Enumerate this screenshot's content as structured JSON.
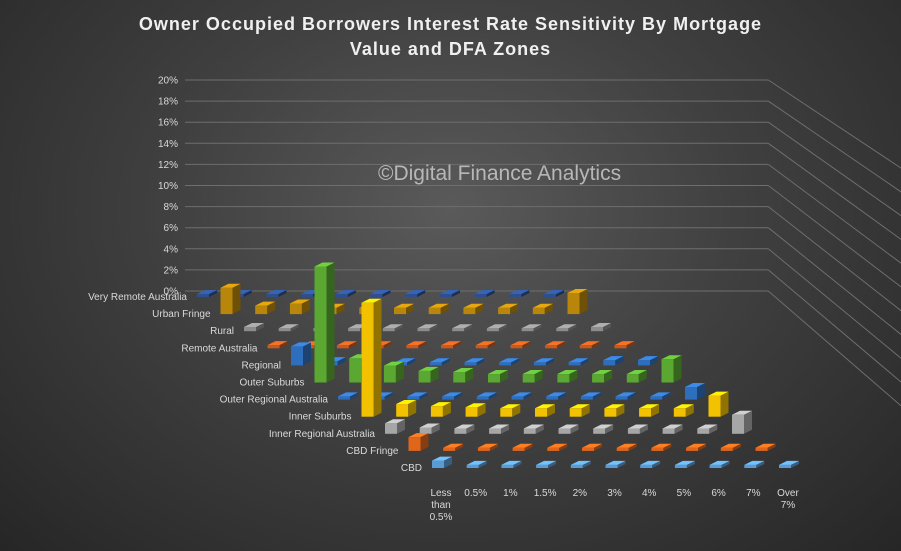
{
  "chart_data": {
    "type": "bar",
    "title_line1": "Owner Occupied Borrowers Interest Rate Sensitivity By Mortgage",
    "title_line2": "Value and DFA Zones",
    "watermark": "©Digital Finance Analytics",
    "y_axis": {
      "ticks": [
        "20%",
        "18%",
        "16%",
        "14%",
        "12%",
        "10%",
        "8%",
        "6%",
        "4%",
        "2%",
        "0%"
      ],
      "ylim": [
        0,
        20
      ],
      "unit": "%"
    },
    "categories": [
      "Less than 0.5%",
      "0.5%",
      "1%",
      "1.5%",
      "2%",
      "3%",
      "4%",
      "5%",
      "6%",
      "7%",
      "Over 7%"
    ],
    "category_display": [
      [
        "Less",
        "than",
        "0.5%"
      ],
      [
        "0.5%"
      ],
      [
        "1%"
      ],
      [
        "1.5%"
      ],
      [
        "2%"
      ],
      [
        "3%"
      ],
      [
        "4%"
      ],
      [
        "5%"
      ],
      [
        "6%"
      ],
      [
        "7%"
      ],
      [
        "Over",
        "7%"
      ]
    ],
    "series": [
      {
        "name": "Very Remote Australia",
        "color": "#2d4f8f",
        "values": [
          0,
          0,
          0,
          0,
          0,
          0,
          0,
          0,
          0,
          0,
          0
        ]
      },
      {
        "name": "Urban Fringe",
        "color": "#b8860b",
        "values": [
          2.5,
          0.8,
          1,
          0.6,
          0.6,
          0.6,
          0.6,
          0.6,
          0.6,
          0.6,
          2
        ]
      },
      {
        "name": "Rural",
        "color": "#8c8c8c",
        "values": [
          0.4,
          0.2,
          0.2,
          0.2,
          0.2,
          0.2,
          0.2,
          0.2,
          0.2,
          0.2,
          0.4
        ]
      },
      {
        "name": "Remote Australia",
        "color": "#c65a1f",
        "values": [
          0.3,
          0.2,
          0.2,
          0.2,
          0.2,
          0.2,
          0.2,
          0.2,
          0.2,
          0.2,
          0.3
        ]
      },
      {
        "name": "Regional",
        "color": "#2e6fbd",
        "values": [
          1.8,
          0.4,
          0.3,
          0.3,
          0.3,
          0.3,
          0.3,
          0.3,
          0.3,
          0.5,
          0.5
        ]
      },
      {
        "name": "Outer Suburbs",
        "color": "#5aa832",
        "values": [
          11,
          2.3,
          1.6,
          1.1,
          1,
          0.8,
          0.8,
          0.8,
          0.8,
          0.8,
          2.2
        ]
      },
      {
        "name": "Outer Regional Australia",
        "color": "#2e6fbd",
        "values": [
          0.3,
          0.3,
          0.3,
          0.3,
          0.3,
          0.3,
          0.3,
          0.3,
          0.3,
          0.3,
          1.2
        ]
      },
      {
        "name": "Inner Suburbs",
        "color": "#f2c200",
        "values": [
          10.8,
          1.2,
          1,
          0.9,
          0.8,
          0.8,
          0.8,
          0.8,
          0.8,
          0.8,
          2
        ]
      },
      {
        "name": "Inner Regional Australia",
        "color": "#a6a6a6",
        "values": [
          1,
          0.6,
          0.5,
          0.5,
          0.5,
          0.5,
          0.5,
          0.5,
          0.5,
          0.5,
          1.8
        ]
      },
      {
        "name": "CBD Fringe",
        "color": "#e0661c",
        "values": [
          1.3,
          0.3,
          0.3,
          0.3,
          0.3,
          0.3,
          0.3,
          0.3,
          0.3,
          0.3,
          0.3
        ]
      },
      {
        "name": "CBD",
        "color": "#5b9bd5",
        "values": [
          0.7,
          0.3,
          0.3,
          0.3,
          0.3,
          0.3,
          0.3,
          0.3,
          0.3,
          0.3,
          0.3
        ]
      }
    ],
    "grid": true,
    "legend": "none"
  }
}
